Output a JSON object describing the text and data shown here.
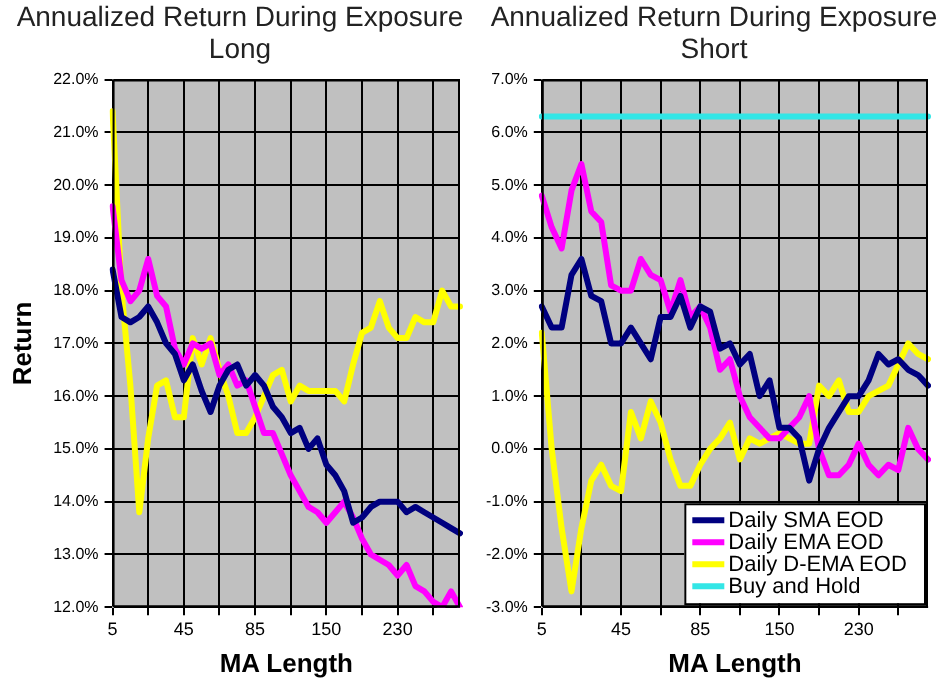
{
  "chart_data": [
    {
      "type": "line",
      "title": "Annualized Return During Exposure",
      "subtitle": "Long",
      "xlabel": "MA Length",
      "ylabel": "Return",
      "categories": [
        "5",
        null,
        null,
        null,
        null,
        null,
        null,
        null,
        "45",
        null,
        null,
        null,
        null,
        null,
        null,
        null,
        "85",
        null,
        null,
        null,
        null,
        null,
        null,
        null,
        "150",
        null,
        null,
        null,
        null,
        null,
        null,
        null,
        "230",
        null,
        null,
        null,
        null,
        null,
        null,
        null
      ],
      "series": [
        {
          "color": "#000080",
          "values": [
            18.4,
            17.5,
            17.4,
            17.5,
            17.7,
            17.4,
            17.0,
            16.8,
            16.3,
            16.6,
            16.1,
            15.7,
            16.2,
            16.5,
            16.6,
            16.2,
            16.4,
            16.2,
            15.8,
            15.6,
            15.3,
            15.4,
            15.0,
            15.2,
            14.7,
            14.5,
            14.2,
            13.6,
            13.7,
            13.9,
            14.0,
            14.0,
            14.0,
            13.8,
            13.9,
            13.8,
            13.7,
            13.6,
            13.5,
            13.4
          ]
        },
        {
          "color": "#ff00ff",
          "values": [
            19.6,
            18.2,
            17.8,
            18.0,
            18.6,
            17.9,
            17.7,
            16.9,
            16.6,
            17.0,
            16.9,
            17.0,
            16.4,
            16.6,
            16.2,
            16.3,
            15.8,
            15.3,
            15.3,
            14.9,
            14.5,
            14.2,
            13.9,
            13.8,
            13.6,
            13.8,
            14.0,
            13.7,
            13.3,
            13.0,
            12.9,
            12.8,
            12.6,
            12.8,
            12.4,
            12.3,
            12.1,
            12.0,
            12.3,
            12.0
          ]
        },
        {
          "color": "#ffff00",
          "values": [
            21.4,
            18.0,
            16.2,
            13.8,
            15.2,
            16.2,
            16.3,
            15.6,
            15.6,
            17.1,
            16.6,
            17.1,
            16.5,
            16.0,
            15.3,
            15.3,
            15.6,
            16.0,
            16.4,
            16.5,
            15.9,
            16.2,
            16.1,
            16.1,
            16.1,
            16.1,
            15.9,
            16.6,
            17.2,
            17.3,
            17.8,
            17.3,
            17.1,
            17.1,
            17.5,
            17.4,
            17.4,
            18.0,
            17.7,
            17.7
          ]
        }
      ],
      "ylim": [
        12,
        22
      ],
      "yticks": [
        {
          "value": 12,
          "label": "12.0%"
        },
        {
          "value": 13,
          "label": "13.0%"
        },
        {
          "value": 14,
          "label": "14.0%"
        },
        {
          "value": 15,
          "label": "15.0%"
        },
        {
          "value": 16,
          "label": "16.0%"
        },
        {
          "value": 17,
          "label": "17.0%"
        },
        {
          "value": 18,
          "label": "18.0%"
        },
        {
          "value": 19,
          "label": "19.0%"
        },
        {
          "value": 20,
          "label": "20.0%"
        },
        {
          "value": 21,
          "label": "21.0%"
        },
        {
          "value": 22,
          "label": "22.0%"
        }
      ],
      "grid": true,
      "legend": false,
      "marker": "none",
      "line_style": "solid"
    },
    {
      "type": "line",
      "title": "Annualized Return During Exposure",
      "subtitle": "Short",
      "xlabel": "MA Length",
      "categories": [
        "5",
        null,
        null,
        null,
        null,
        null,
        null,
        null,
        "45",
        null,
        null,
        null,
        null,
        null,
        null,
        null,
        "85",
        null,
        null,
        null,
        null,
        null,
        null,
        null,
        "150",
        null,
        null,
        null,
        null,
        null,
        null,
        null,
        "230",
        null,
        null,
        null,
        null,
        null,
        null,
        null
      ],
      "series": [
        {
          "name": "Daily SMA EOD",
          "color": "#000080",
          "values": [
            2.7,
            2.3,
            2.3,
            3.3,
            3.6,
            2.9,
            2.8,
            2.0,
            2.0,
            2.3,
            2.0,
            1.7,
            2.5,
            2.5,
            2.9,
            2.3,
            2.7,
            2.6,
            1.9,
            2.0,
            1.6,
            1.8,
            1.0,
            1.3,
            0.4,
            0.4,
            0.2,
            -0.6,
            0.0,
            0.4,
            0.7,
            1.0,
            1.0,
            1.3,
            1.8,
            1.6,
            1.7,
            1.5,
            1.4,
            1.2
          ]
        },
        {
          "name": "Daily EMA EOD",
          "color": "#ff00ff",
          "values": [
            4.8,
            4.2,
            3.8,
            4.9,
            5.4,
            4.5,
            4.3,
            3.1,
            3.0,
            3.0,
            3.6,
            3.3,
            3.2,
            2.6,
            3.2,
            2.5,
            2.7,
            2.3,
            1.5,
            1.7,
            1.0,
            0.6,
            0.4,
            0.2,
            0.2,
            0.4,
            0.6,
            1.0,
            0.0,
            -0.5,
            -0.5,
            -0.3,
            0.1,
            -0.3,
            -0.5,
            -0.3,
            -0.4,
            0.4,
            0.0,
            -0.2
          ]
        },
        {
          "name": "Daily D-EMA EOD",
          "color": "#ffff00",
          "values": [
            2.2,
            0.0,
            -1.5,
            -2.7,
            -1.5,
            -0.6,
            -0.3,
            -0.7,
            -0.8,
            0.7,
            0.2,
            0.9,
            0.5,
            -0.2,
            -0.7,
            -0.7,
            -0.3,
            0.0,
            0.2,
            0.5,
            -0.2,
            0.2,
            0.1,
            0.2,
            0.3,
            0.2,
            0.1,
            0.1,
            1.2,
            1.0,
            1.3,
            0.7,
            0.7,
            1.0,
            1.1,
            1.2,
            1.6,
            2.0,
            1.8,
            1.7
          ]
        },
        {
          "name": "Buy and Hold",
          "color": "#33e6e6",
          "values": [
            6.3,
            6.3,
            6.3,
            6.3,
            6.3,
            6.3,
            6.3,
            6.3,
            6.3,
            6.3,
            6.3,
            6.3,
            6.3,
            6.3,
            6.3,
            6.3,
            6.3,
            6.3,
            6.3,
            6.3,
            6.3,
            6.3,
            6.3,
            6.3,
            6.3,
            6.3,
            6.3,
            6.3,
            6.3,
            6.3,
            6.3,
            6.3,
            6.3,
            6.3,
            6.3,
            6.3,
            6.3,
            6.3,
            6.3,
            6.3
          ]
        }
      ],
      "ylim": [
        -3,
        7
      ],
      "yticks": [
        {
          "value": -3,
          "label": "-3.0%"
        },
        {
          "value": -2,
          "label": "-2.0%"
        },
        {
          "value": -1,
          "label": "-1.0%"
        },
        {
          "value": 0,
          "label": "0.0%"
        },
        {
          "value": 1,
          "label": "1.0%"
        },
        {
          "value": 2,
          "label": "2.0%"
        },
        {
          "value": 3,
          "label": "3.0%"
        },
        {
          "value": 4,
          "label": "4.0%"
        },
        {
          "value": 5,
          "label": "5.0%"
        },
        {
          "value": 6,
          "label": "6.0%"
        },
        {
          "value": 7,
          "label": "7.0%"
        }
      ],
      "grid": true,
      "legend": "bottom right",
      "marker": "none",
      "line_style": "solid"
    }
  ]
}
